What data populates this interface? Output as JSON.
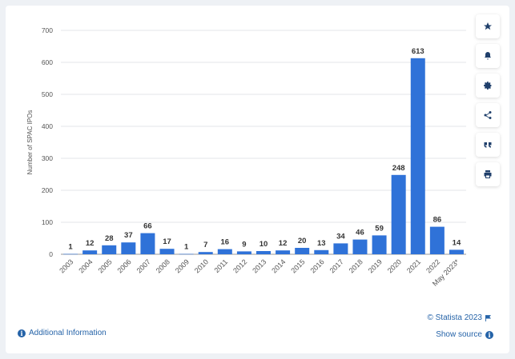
{
  "chart_data": {
    "type": "bar",
    "categories": [
      "2003",
      "2004",
      "2005",
      "2006",
      "2007",
      "2008",
      "2009",
      "2010",
      "2011",
      "2012",
      "2013",
      "2014",
      "2015",
      "2016",
      "2017",
      "2018",
      "2019",
      "2020",
      "2021",
      "2022",
      "May 2023*"
    ],
    "values": [
      1,
      12,
      28,
      37,
      66,
      17,
      1,
      7,
      16,
      9,
      10,
      12,
      20,
      13,
      34,
      46,
      59,
      248,
      613,
      86,
      14
    ],
    "ylabel": "Number of SPAC IPOs",
    "xlabel": "",
    "ylim": [
      0,
      700
    ],
    "yticks": [
      0,
      100,
      200,
      300,
      400,
      500,
      600,
      700
    ],
    "grid": true,
    "bar_color": "#2f72d8"
  },
  "toolbar": {
    "buttons": [
      "star-icon",
      "bell-icon",
      "gear-icon",
      "share-icon",
      "quote-icon",
      "print-icon"
    ]
  },
  "footer": {
    "additional_info": "Additional Information",
    "credit": "© Statista 2023",
    "show_source": "Show source"
  }
}
